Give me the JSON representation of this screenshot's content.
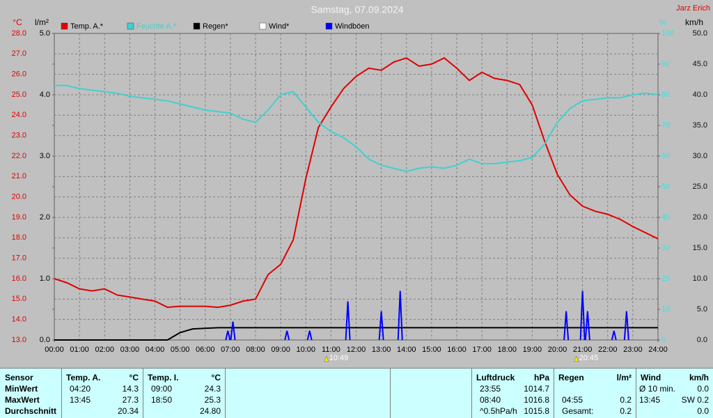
{
  "chart_data": {
    "type": "line",
    "title": "Samstag, 07.09.2024",
    "author": "Jarz Erich",
    "y_unit": "°C",
    "y2_unit": "l/m²",
    "y3_unit": "%",
    "y4_unit": "km/h",
    "grid": true,
    "xlim": [
      0,
      24
    ],
    "xticks": [
      {
        "value": 0,
        "label": "00:00"
      },
      {
        "value": 1,
        "label": "01:00"
      },
      {
        "value": 2,
        "label": "02:00"
      },
      {
        "value": 3,
        "label": "03:00"
      },
      {
        "value": 4,
        "label": "04:00"
      },
      {
        "value": 5,
        "label": "05:00"
      },
      {
        "value": 6,
        "label": "06:00"
      },
      {
        "value": 7,
        "label": "07:00"
      },
      {
        "value": 8,
        "label": "08:00"
      },
      {
        "value": 9,
        "label": "09:00"
      },
      {
        "value": 10,
        "label": "10:00"
      },
      {
        "value": 11,
        "label": "11:00"
      },
      {
        "value": 12,
        "label": "12:00"
      },
      {
        "value": 13,
        "label": "13:00"
      },
      {
        "value": 14,
        "label": "14:00"
      },
      {
        "value": 15,
        "label": "15:00"
      },
      {
        "value": 16,
        "label": "16:00"
      },
      {
        "value": 17,
        "label": "17:00"
      },
      {
        "value": 18,
        "label": "18:00"
      },
      {
        "value": 19,
        "label": "19:00"
      },
      {
        "value": 20,
        "label": "20:00"
      },
      {
        "value": 21,
        "label": "21:00"
      },
      {
        "value": 22,
        "label": "22:00"
      },
      {
        "value": 23,
        "label": "23:00"
      },
      {
        "value": 24,
        "label": "24:00"
      }
    ],
    "ylim": [
      13,
      28
    ],
    "yticks": [
      {
        "value": 13,
        "label": "13.0"
      },
      {
        "value": 14,
        "label": "14.0"
      },
      {
        "value": 15,
        "label": "15.0"
      },
      {
        "value": 16,
        "label": "16.0"
      },
      {
        "value": 17,
        "label": "17.0"
      },
      {
        "value": 18,
        "label": "18.0"
      },
      {
        "value": 19,
        "label": "19.0"
      },
      {
        "value": 20,
        "label": "20.0"
      },
      {
        "value": 21,
        "label": "21.0"
      },
      {
        "value": 22,
        "label": "22.0"
      },
      {
        "value": 23,
        "label": "23.0"
      },
      {
        "value": 24,
        "label": "24.0"
      },
      {
        "value": 25,
        "label": "25.0"
      },
      {
        "value": 26,
        "label": "26.0"
      },
      {
        "value": 27,
        "label": "27.0"
      },
      {
        "value": 28,
        "label": "28.0"
      }
    ],
    "y2lim": [
      0,
      5
    ],
    "y2ticks": [
      {
        "value": 0,
        "label": "0.0"
      },
      {
        "value": 1,
        "label": "1.0"
      },
      {
        "value": 2,
        "label": "2.0"
      },
      {
        "value": 3,
        "label": "3.0"
      },
      {
        "value": 4,
        "label": "4.0"
      },
      {
        "value": 5,
        "label": "5.0"
      }
    ],
    "y3lim": [
      0,
      100
    ],
    "y3ticks": [
      0,
      10,
      20,
      30,
      40,
      50,
      60,
      70,
      80,
      90,
      100
    ],
    "y4lim": [
      0,
      50
    ],
    "y4ticks": [
      {
        "value": 0,
        "label": "0.0"
      },
      {
        "value": 5,
        "label": "5.0"
      },
      {
        "value": 10,
        "label": "10.0"
      },
      {
        "value": 15,
        "label": "15.0"
      },
      {
        "value": 20,
        "label": "20.0"
      },
      {
        "value": 25,
        "label": "25.0"
      },
      {
        "value": 30,
        "label": "30.0"
      },
      {
        "value": 35,
        "label": "35.0"
      },
      {
        "value": 40,
        "label": "40.0"
      },
      {
        "value": 45,
        "label": "45.0"
      },
      {
        "value": 50,
        "label": "50.0"
      }
    ],
    "x": [
      0,
      0.5,
      1,
      1.5,
      2,
      2.5,
      3,
      3.5,
      4,
      4.5,
      5,
      5.5,
      6,
      6.5,
      7,
      7.5,
      8,
      8.5,
      9,
      9.5,
      10,
      10.5,
      11,
      11.5,
      12,
      12.5,
      13,
      13.5,
      14,
      14.5,
      15,
      15.5,
      16,
      16.5,
      17,
      17.5,
      18,
      18.5,
      19,
      19.5,
      20,
      20.5,
      21,
      21.5,
      22,
      22.5,
      23,
      23.5,
      24
    ],
    "series": [
      {
        "name": "Temp. A.*",
        "color": "#e00000",
        "axis": "y",
        "values": [
          16.0,
          15.8,
          15.5,
          15.4,
          15.5,
          15.2,
          15.1,
          15.0,
          14.9,
          14.6,
          14.65,
          14.65,
          14.65,
          14.6,
          14.7,
          14.9,
          15.0,
          16.2,
          16.7,
          17.9,
          20.9,
          23.4,
          24.4,
          25.3,
          25.9,
          26.3,
          26.2,
          26.6,
          26.8,
          26.4,
          26.5,
          26.8,
          26.3,
          25.7,
          26.1,
          25.8,
          25.7,
          25.5,
          24.5,
          22.7,
          21.1,
          20.1,
          19.55,
          19.3,
          19.15,
          18.9,
          18.55,
          18.25,
          17.95
        ]
      },
      {
        "name": "Feuchte A.*",
        "color": "#40d0d0",
        "axis": "y3",
        "values": [
          83,
          83,
          82,
          81.5,
          81,
          80.5,
          79.5,
          79,
          78.5,
          78,
          77,
          76,
          75,
          74.5,
          74,
          72,
          71,
          75,
          80,
          81,
          76,
          71,
          68,
          66,
          63,
          59,
          57,
          56,
          55,
          56,
          56.5,
          56,
          57,
          59,
          57.5,
          57.5,
          58,
          58.5,
          59.5,
          64,
          71,
          75.5,
          78,
          78.5,
          79,
          79,
          80,
          80.5,
          80
        ]
      },
      {
        "name": "Regen*",
        "color": "#000000",
        "axis": "y2",
        "values": [
          0,
          0,
          0,
          0,
          0,
          0,
          0,
          0,
          0,
          0,
          0.12,
          0.18,
          0.19,
          0.2,
          0.2,
          0.2,
          0.2,
          0.2,
          0.2,
          0.2,
          0.2,
          0.2,
          0.2,
          0.2,
          0.2,
          0.2,
          0.2,
          0.2,
          0.2,
          0.2,
          0.2,
          0.2,
          0.2,
          0.2,
          0.2,
          0.2,
          0.2,
          0.2,
          0.2,
          0.2,
          0.2,
          0.2,
          0.2,
          0.2,
          0.2,
          0.2,
          0.2,
          0.2,
          0.2
        ]
      },
      {
        "name": "Wind*",
        "color": "#ffffff",
        "axis": "y4"
      },
      {
        "name": "Windböen",
        "color": "#0000ff",
        "axis": "y4",
        "spikes": true,
        "x": [
          6.9,
          7.1,
          9.25,
          10.15,
          11.67,
          13.0,
          13.75,
          20.35,
          21.0,
          21.2,
          22.25,
          22.75
        ],
        "values": [
          1.5,
          3.0,
          1.5,
          1.5,
          6.3,
          4.7,
          8.0,
          4.7,
          8.0,
          4.7,
          1.5,
          4.7
        ]
      }
    ],
    "annotations": [
      {
        "label": "10:49",
        "x": 10.8167
      },
      {
        "label": "20:45",
        "x": 20.75
      }
    ]
  },
  "table": {
    "row_labels": [
      "Sensor",
      "MinWert",
      "MaxWert",
      "Durchschnitt"
    ],
    "columns": [
      {
        "title": "Temp. A.",
        "unit": "°C",
        "cells": [
          [
            "04:20",
            "14.3"
          ],
          [
            "13:45",
            "27.3"
          ],
          [
            "20.34"
          ]
        ]
      },
      {
        "title": "Temp. I.",
        "unit": "°C",
        "cells": [
          [
            "09:00",
            "24.3"
          ],
          [
            "18:50",
            "25.3"
          ],
          [
            "24.80"
          ]
        ]
      },
      {
        "title": "Luftdruck",
        "unit": "hPa",
        "cells": [
          [
            "23:55",
            "1014.7"
          ],
          [
            "08:40",
            "1016.8"
          ],
          [
            "^0.5hPa/h",
            "1015.8"
          ]
        ]
      },
      {
        "title": "Regen",
        "unit": "l/m²",
        "cells": [
          [],
          [
            "04:55",
            "0.2"
          ],
          [
            "Gesamt:",
            "0.2"
          ]
        ]
      },
      {
        "title": "Wind",
        "unit": "km/h",
        "cells": [
          [
            "Ø 10 min.",
            "0.0"
          ],
          [
            "13:45",
            "SW 0.2"
          ],
          [
            "0.0"
          ]
        ]
      }
    ]
  }
}
